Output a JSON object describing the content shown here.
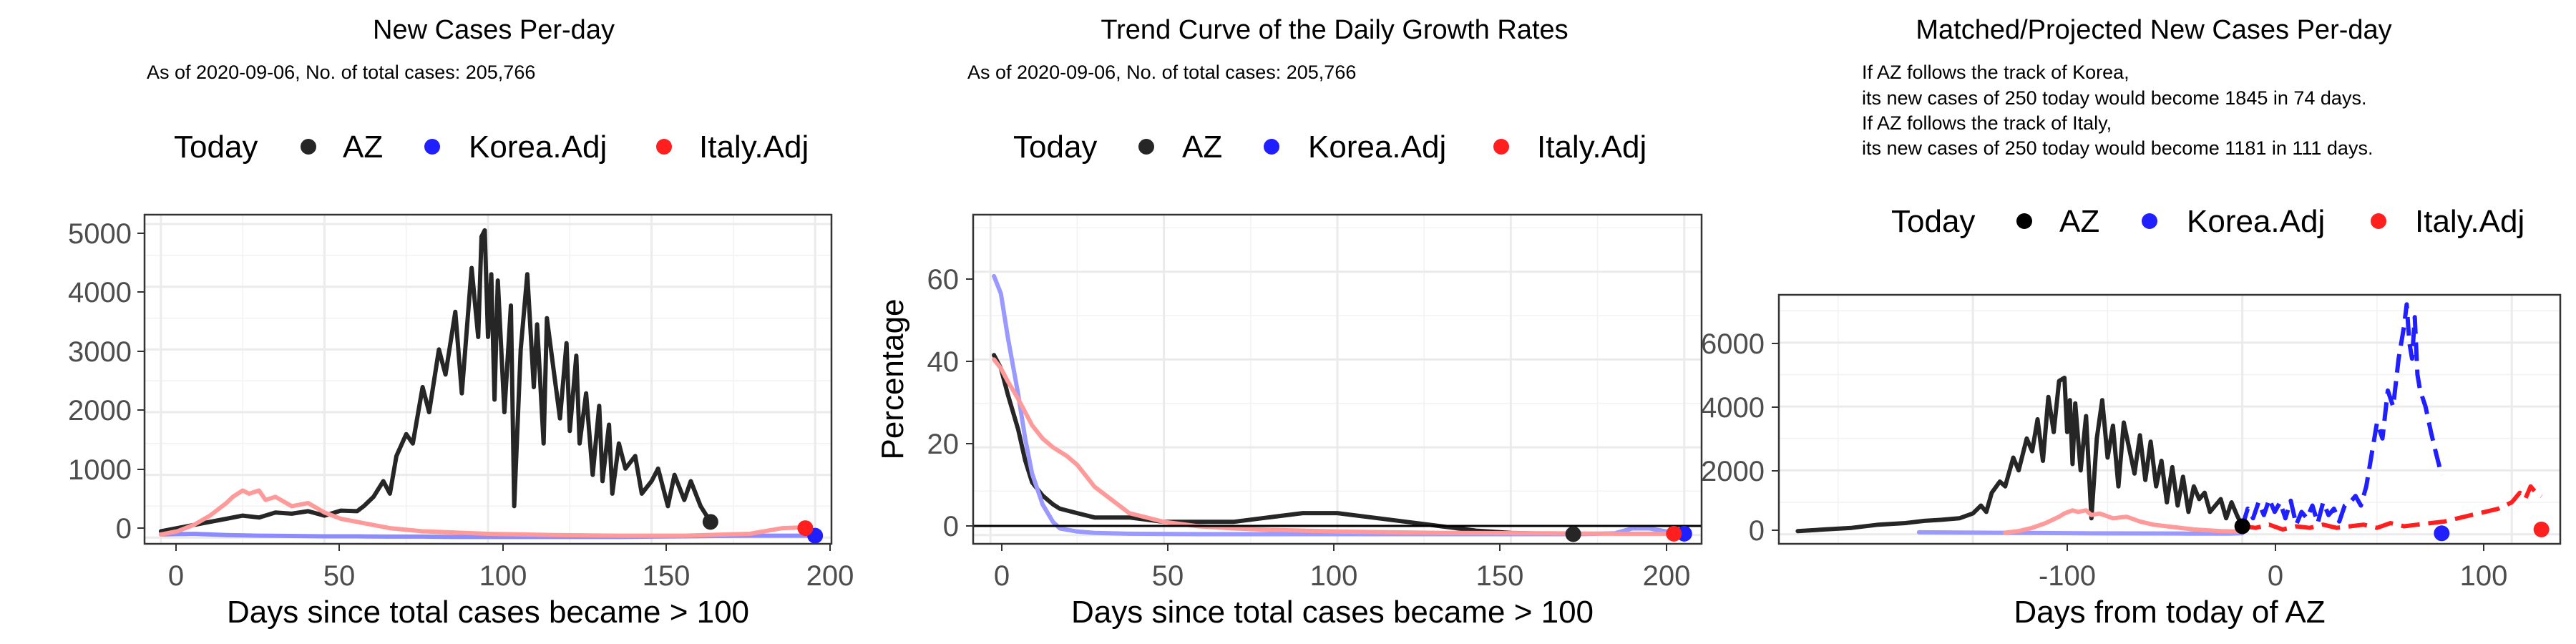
{
  "charts": [
    {
      "title": "New Cases Per-day",
      "subtitle_lines": [
        "As of 2020-09-06, No. of total cases: 205,766"
      ],
      "legend": {
        "title": "Today",
        "items": [
          "AZ",
          "Korea.Adj",
          "Italy.Adj"
        ]
      },
      "xlabel": "Days since total cases became > 100",
      "ylabel": "",
      "x_ticks": [
        "0",
        "50",
        "100",
        "150",
        "200"
      ],
      "y_ticks": [
        "0",
        "1000",
        "2000",
        "3000",
        "4000",
        "5000"
      ]
    },
    {
      "title": "Trend Curve of the Daily Growth Rates",
      "subtitle_lines": [
        "As of 2020-09-06, No. of total cases: 205,766"
      ],
      "legend": {
        "title": "Today",
        "items": [
          "AZ",
          "Korea.Adj",
          "Italy.Adj"
        ]
      },
      "xlabel": "Days since total cases became > 100",
      "ylabel": "Percentage",
      "x_ticks": [
        "0",
        "50",
        "100",
        "150",
        "200"
      ],
      "y_ticks": [
        "0",
        "20",
        "40",
        "60"
      ]
    },
    {
      "title": "Matched/Projected New Cases Per-day",
      "subtitle_lines": [
        "If AZ follows the track of Korea,",
        "its new cases of 250 today would become 1845 in 74 days.",
        "If AZ follows the track of Italy,",
        "its new cases of 250 today would become 1181 in 111 days."
      ],
      "legend": {
        "title": "Today",
        "items": [
          "AZ",
          "Korea.Adj",
          "Italy.Adj"
        ]
      },
      "xlabel": "Days from today of AZ",
      "ylabel": "",
      "x_ticks": [
        "-100",
        "0",
        "100"
      ],
      "y_ticks": [
        "0",
        "2000",
        "4000",
        "6000"
      ]
    }
  ],
  "colors": {
    "az": "#262626",
    "korea": "#1f1fff",
    "italy": "#ff1f1f",
    "grid": "#ebebeb",
    "frame": "#333333"
  },
  "chart_data": [
    {
      "type": "line",
      "title": "New Cases Per-day",
      "xlabel": "Days since total cases became > 100",
      "ylabel": "",
      "xlim": [
        -5,
        205
      ],
      "ylim": [
        -100,
        5150
      ],
      "series": [
        {
          "name": "AZ",
          "color": "#262626",
          "x": [
            0,
            5,
            10,
            15,
            20,
            25,
            30,
            35,
            40,
            45,
            50,
            55,
            60,
            62,
            65,
            68,
            70,
            72,
            75,
            77,
            80,
            82,
            85,
            87,
            90,
            92,
            95,
            97,
            98,
            99,
            100,
            101,
            102,
            103,
            105,
            107,
            108,
            110,
            112,
            114,
            115,
            117,
            118,
            120,
            122,
            124,
            125,
            127,
            128,
            130,
            132,
            134,
            135,
            137,
            138,
            140,
            142,
            145,
            147,
            150,
            152,
            155,
            157,
            160,
            162,
            165,
            168
          ],
          "y": [
            100,
            150,
            200,
            250,
            300,
            350,
            320,
            400,
            380,
            420,
            350,
            430,
            420,
            500,
            650,
            900,
            700,
            1300,
            1650,
            1500,
            2400,
            2000,
            3000,
            2600,
            3600,
            2300,
            4300,
            3200,
            4800,
            4900,
            3200,
            4200,
            2200,
            4100,
            2000,
            3700,
            500,
            3000,
            4200,
            2400,
            3400,
            1500,
            3500,
            2700,
            1900,
            3100,
            1700,
            2900,
            1500,
            2300,
            1000,
            2100,
            900,
            1800,
            700,
            1500,
            1100,
            1300,
            700,
            900,
            1100,
            500,
            1000,
            600,
            900,
            500,
            250
          ]
        },
        {
          "name": "Korea.Adj",
          "color": "#8c8cff",
          "x": [
            0,
            10,
            20,
            30,
            40,
            50,
            60,
            70,
            80,
            90,
            100,
            110,
            120,
            130,
            140,
            150,
            160,
            170,
            180,
            190,
            200
          ],
          "y": [
            50,
            60,
            40,
            30,
            25,
            20,
            20,
            15,
            15,
            10,
            10,
            10,
            10,
            10,
            10,
            15,
            20,
            25,
            30,
            30,
            30
          ]
        },
        {
          "name": "Italy.Adj",
          "color": "#ff9a9a",
          "x": [
            0,
            5,
            10,
            15,
            20,
            22,
            25,
            27,
            30,
            32,
            35,
            40,
            45,
            50,
            55,
            60,
            70,
            80,
            90,
            100,
            120,
            140,
            160,
            180,
            190,
            195,
            198
          ],
          "y": [
            50,
            100,
            200,
            350,
            550,
            650,
            750,
            700,
            750,
            600,
            650,
            500,
            550,
            400,
            300,
            250,
            150,
            100,
            80,
            60,
            40,
            30,
            30,
            60,
            150,
            160,
            150
          ]
        }
      ],
      "today_points": [
        {
          "name": "AZ",
          "x": 168,
          "y": 250
        },
        {
          "name": "Korea.Adj",
          "x": 200,
          "y": 30
        },
        {
          "name": "Italy.Adj",
          "x": 197,
          "y": 150
        }
      ]
    },
    {
      "type": "line",
      "title": "Trend Curve of the Daily Growth Rates",
      "xlabel": "Days since total cases became > 100",
      "ylabel": "Percentage",
      "xlim": [
        -5,
        205
      ],
      "ylim": [
        -2,
        73
      ],
      "series": [
        {
          "name": "AZ",
          "color": "#262626",
          "x": [
            1,
            3,
            5,
            8,
            10,
            12,
            15,
            18,
            20,
            25,
            30,
            35,
            40,
            50,
            60,
            70,
            80,
            90,
            95,
            100,
            110,
            120,
            130,
            140,
            150,
            160,
            168
          ],
          "y": [
            41,
            38,
            32,
            24,
            17,
            12,
            9,
            7,
            6,
            5,
            4,
            4,
            4,
            3,
            3,
            3,
            4,
            5,
            5,
            5,
            4,
            3,
            2,
            1,
            0.5,
            0.3,
            0.2
          ]
        },
        {
          "name": "Korea.Adj",
          "color": "#9999ff",
          "x": [
            1,
            3,
            5,
            8,
            10,
            12,
            15,
            18,
            20,
            25,
            30,
            40,
            60,
            100,
            150,
            170,
            180,
            185,
            190,
            195,
            200
          ],
          "y": [
            59,
            55,
            45,
            32,
            22,
            14,
            7,
            3,
            1.5,
            0.8,
            0.5,
            0.3,
            0.2,
            0.2,
            0.2,
            0.2,
            0.4,
            1.5,
            1.5,
            0.8,
            0.3
          ]
        },
        {
          "name": "Italy.Adj",
          "color": "#ff9a9a",
          "x": [
            1,
            3,
            5,
            8,
            10,
            12,
            15,
            18,
            20,
            22,
            25,
            28,
            30,
            35,
            40,
            45,
            50,
            60,
            70,
            80,
            100,
            130,
            160,
            180,
            190,
            197
          ],
          "y": [
            40,
            38,
            35,
            31,
            28,
            25,
            22,
            20,
            19,
            18,
            16,
            13,
            11,
            8,
            5,
            4,
            3,
            2,
            1.5,
            1.2,
            0.8,
            0.5,
            0.4,
            0.3,
            0.3,
            0.3
          ]
        }
      ],
      "reference_lines": [
        {
          "y": 0
        }
      ],
      "today_points": [
        {
          "name": "AZ",
          "x": 168,
          "y": 0.2
        },
        {
          "name": "Korea.Adj",
          "x": 200,
          "y": 0.3
        },
        {
          "name": "Italy.Adj",
          "x": 197,
          "y": 0.3
        }
      ]
    },
    {
      "type": "line",
      "title": "Matched/Projected New Cases Per-day",
      "xlabel": "Days from today of AZ",
      "ylabel": "",
      "xlim": [
        -172,
        118
      ],
      "ylim": [
        -300,
        7500
      ],
      "series": [
        {
          "name": "AZ",
          "color": "#262626",
          "x": [
            -165,
            -155,
            -145,
            -135,
            -125,
            -118,
            -112,
            -105,
            -100,
            -97,
            -95,
            -93,
            -90,
            -88,
            -85,
            -83,
            -80,
            -78,
            -76,
            -74,
            -72,
            -70,
            -68,
            -66,
            -65,
            -64,
            -63,
            -62,
            -60,
            -58,
            -56,
            -54,
            -52,
            -50,
            -48,
            -46,
            -44,
            -42,
            -40,
            -38,
            -36,
            -34,
            -32,
            -30,
            -28,
            -26,
            -24,
            -22,
            -20,
            -18,
            -16,
            -14,
            -12,
            -10,
            -8,
            -6,
            -4,
            -2,
            0
          ],
          "y": [
            100,
            150,
            200,
            300,
            350,
            420,
            450,
            500,
            650,
            900,
            700,
            1300,
            1650,
            1500,
            2400,
            2000,
            3000,
            2600,
            3600,
            2300,
            4300,
            3200,
            4800,
            4900,
            3200,
            4200,
            2200,
            4100,
            2000,
            3700,
            500,
            3000,
            4200,
            2400,
            3400,
            1500,
            3500,
            2700,
            1900,
            3100,
            1700,
            2900,
            1500,
            2300,
            1000,
            2100,
            900,
            1800,
            700,
            1500,
            1100,
            1300,
            700,
            900,
            1100,
            500,
            1000,
            600,
            250
          ]
        },
        {
          "name": "Korea.Adj",
          "color": "#9999ff",
          "x": [
            -120,
            -100,
            -80,
            -60,
            -40,
            -20,
            -10,
            -5,
            0
          ],
          "y": [
            60,
            50,
            40,
            30,
            25,
            20,
            20,
            20,
            30
          ]
        },
        {
          "name": "Italy.Adj",
          "color": "#ff9a9a",
          "x": [
            -88,
            -83,
            -78,
            -73,
            -68,
            -66,
            -63,
            -61,
            -58,
            -56,
            -53,
            -48,
            -43,
            -38,
            -33,
            -28,
            -18,
            -8,
            0
          ],
          "y": [
            50,
            100,
            200,
            350,
            550,
            650,
            750,
            700,
            750,
            600,
            650,
            500,
            550,
            400,
            300,
            250,
            150,
            100,
            80
          ]
        },
        {
          "name": "Korea.Adj (projected)",
          "color": "#1f1fff",
          "dashed": true,
          "x": [
            0,
            2,
            4,
            6,
            8,
            10,
            12,
            14,
            16,
            18,
            20,
            22,
            24,
            26,
            28,
            30,
            32,
            34,
            36,
            38,
            40,
            42,
            44,
            46,
            48,
            50,
            52,
            54,
            56,
            58,
            60,
            61,
            62,
            63,
            64,
            65,
            66,
            68,
            70,
            72,
            74
          ],
          "y": [
            250,
            800,
            500,
            1000,
            600,
            1100,
            700,
            1000,
            500,
            1050,
            300,
            700,
            500,
            900,
            350,
            1000,
            600,
            800,
            400,
            900,
            1000,
            1200,
            900,
            1500,
            2500,
            3500,
            3000,
            4500,
            4000,
            5500,
            6500,
            7200,
            6000,
            5500,
            6800,
            5000,
            4500,
            4000,
            3200,
            2500,
            1845
          ]
        },
        {
          "name": "Italy.Adj (projected)",
          "color": "#ff1f1f",
          "dashed": true,
          "x": [
            0,
            5,
            10,
            15,
            20,
            25,
            30,
            35,
            40,
            45,
            50,
            55,
            60,
            65,
            70,
            75,
            80,
            85,
            90,
            95,
            100,
            103,
            105,
            107,
            109,
            111
          ],
          "y": [
            250,
            200,
            300,
            150,
            250,
            200,
            300,
            200,
            250,
            300,
            200,
            350,
            250,
            300,
            350,
            400,
            500,
            600,
            700,
            800,
            1000,
            1300,
            1100,
            1500,
            1300,
            1181
          ]
        }
      ],
      "today_points": [
        {
          "name": "AZ",
          "x": 0,
          "y": 250
        },
        {
          "name": "Korea.Adj",
          "x": 74,
          "y": 30
        },
        {
          "name": "Italy.Adj",
          "x": 111,
          "y": 150
        }
      ]
    }
  ]
}
